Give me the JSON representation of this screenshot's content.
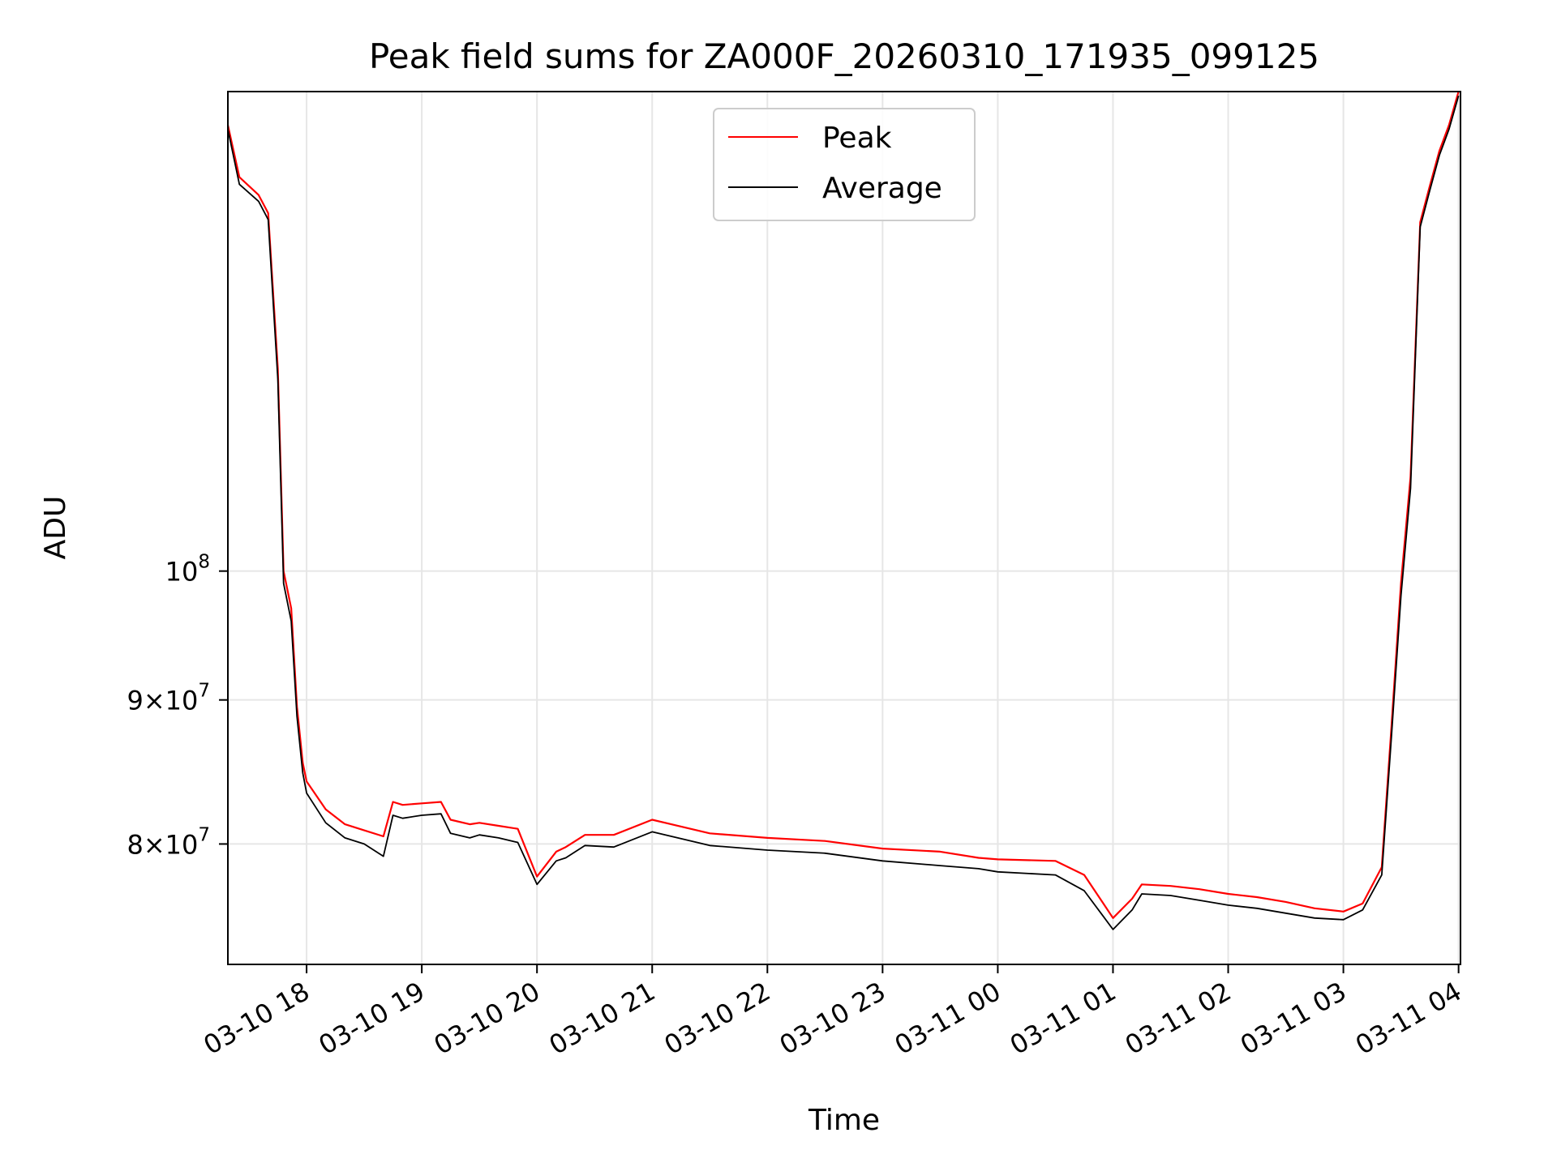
{
  "chart_data": {
    "type": "line",
    "title": "Peak field sums for ZA000F_20260310_171935_099125",
    "xlabel": "Time",
    "ylabel": "ADU",
    "y_scale": "log",
    "grid": true,
    "legend_position": "top-center",
    "x_ticks": [
      "03-10 18",
      "03-10 19",
      "03-10 20",
      "03-10 21",
      "03-10 22",
      "03-10 23",
      "03-11 00",
      "03-11 01",
      "03-11 02",
      "03-11 03",
      "03-11 04"
    ],
    "x_range": [
      "2026-03-10 17:19",
      "2026-03-11 04:00"
    ],
    "y_ticks": [
      {
        "value": 80000000,
        "mantissa": "8",
        "exponent": "7"
      },
      {
        "value": 90000000,
        "mantissa": "9",
        "exponent": "7"
      },
      {
        "value": 100000000,
        "mantissa": "",
        "exponent": "8"
      }
    ],
    "ylim": [
      72500000,
      148000000
    ],
    "x": [
      "17:19",
      "17:25",
      "17:35",
      "17:40",
      "17:45",
      "17:48",
      "17:52",
      "17:55",
      "17:58",
      "18:00",
      "18:10",
      "18:20",
      "18:30",
      "18:40",
      "18:45",
      "18:50",
      "19:00",
      "19:10",
      "19:15",
      "19:25",
      "19:30",
      "19:40",
      "19:50",
      "20:00",
      "20:10",
      "20:15",
      "20:25",
      "20:40",
      "21:00",
      "21:30",
      "22:00",
      "22:30",
      "23:00",
      "23:30",
      "23:50",
      "00:00",
      "00:30",
      "00:45",
      "00:55",
      "01:00",
      "01:10",
      "01:15",
      "01:30",
      "01:45",
      "02:00",
      "02:15",
      "02:30",
      "02:45",
      "03:00",
      "03:10",
      "03:20",
      "03:25",
      "03:30",
      "03:35",
      "03:40",
      "03:45",
      "03:50",
      "03:55",
      "04:00"
    ],
    "series": [
      {
        "name": "Peak",
        "color": "#ff0000",
        "values": [
          144000000,
          138000000,
          136000000,
          134000000,
          118000000,
          100000000,
          97000000,
          89500000,
          85500000,
          84200000,
          82300000,
          81300000,
          80900000,
          80500000,
          82800000,
          82600000,
          82700000,
          82800000,
          81600000,
          81300000,
          81400000,
          81200000,
          81000000,
          77900000,
          79500000,
          79800000,
          80600000,
          80600000,
          81600000,
          80700000,
          80400000,
          80200000,
          79700000,
          79500000,
          79100000,
          79000000,
          78900000,
          78000000,
          76200000,
          75300000,
          76500000,
          77400000,
          77300000,
          77100000,
          76800000,
          76600000,
          76300000,
          75900000,
          75700000,
          76200000,
          78500000,
          88000000,
          99000000,
          108000000,
          133000000,
          137000000,
          141000000,
          144000000,
          148000000
        ]
      },
      {
        "name": "Average",
        "color": "#000000",
        "values": [
          143500000,
          137200000,
          135300000,
          133300000,
          117000000,
          99000000,
          96000000,
          88800000,
          84800000,
          83400000,
          81400000,
          80400000,
          80000000,
          79200000,
          81900000,
          81700000,
          81900000,
          82000000,
          80700000,
          80400000,
          80600000,
          80400000,
          80100000,
          77400000,
          78900000,
          79100000,
          79900000,
          79800000,
          80800000,
          79900000,
          79600000,
          79400000,
          78900000,
          78600000,
          78400000,
          78200000,
          78000000,
          77000000,
          75400000,
          74600000,
          75800000,
          76800000,
          76700000,
          76400000,
          76100000,
          75900000,
          75600000,
          75300000,
          75200000,
          75800000,
          78000000,
          87300000,
          98000000,
          107000000,
          132500000,
          136500000,
          140500000,
          143500000,
          147500000
        ]
      }
    ]
  }
}
